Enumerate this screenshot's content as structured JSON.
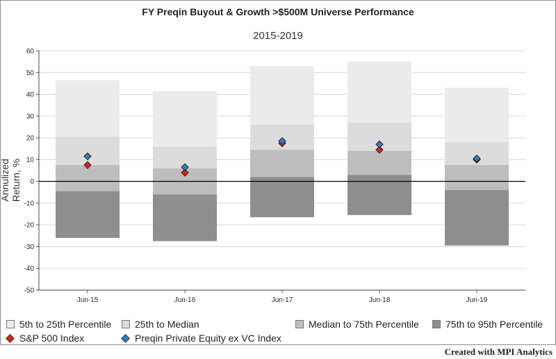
{
  "chart_data": {
    "type": "bar",
    "title": "FY Preqin Buyout & Growth >$500M Universe Performance",
    "subtitle": "2015-2019",
    "ylabel": "Annulized Return, %",
    "ylim": [
      -50,
      60
    ],
    "yticks": [
      -50,
      -40,
      -30,
      -20,
      -10,
      0,
      10,
      20,
      30,
      40,
      50,
      60
    ],
    "categories": [
      "Jun-15",
      "Jun-16",
      "Jun-17",
      "Jun-18",
      "Jun-19"
    ],
    "bands": [
      {
        "name": "5th to 25th Percentile",
        "color": "#ebebeb",
        "low": [
          20.5,
          16,
          26,
          27,
          18
        ],
        "high": [
          46.5,
          41.5,
          53,
          55,
          43
        ]
      },
      {
        "name": "25th to Median",
        "color": "#dcdcdc",
        "low": [
          7.5,
          6,
          14.5,
          14,
          7.5
        ],
        "high": [
          20.5,
          16,
          26,
          27,
          18
        ]
      },
      {
        "name": "Median to 75th Percentile",
        "color": "#bdbdbd",
        "low": [
          -4.5,
          -6,
          2,
          3,
          -4
        ],
        "high": [
          7.5,
          6,
          14.5,
          14,
          7.5
        ]
      },
      {
        "name": "75th to 95th Percentile",
        "color": "#8e8e8e",
        "low": [
          -26,
          -27.5,
          -16.5,
          -15.5,
          -29.5
        ],
        "high": [
          -4.5,
          -6,
          2,
          3,
          -4
        ]
      }
    ],
    "points": [
      {
        "name": "S&P 500 Index",
        "color": "#e02020",
        "values": [
          7.5,
          4,
          17.5,
          14.5,
          10
        ]
      },
      {
        "name": "Preqin Private Equity ex VC Index",
        "color": "#2f7fc1",
        "values": [
          11.5,
          6.5,
          18.5,
          17,
          10.5
        ]
      }
    ],
    "grid": true,
    "legend_placement": "bottom"
  },
  "footer": {
    "credit": "Created with MPI Analytics"
  }
}
